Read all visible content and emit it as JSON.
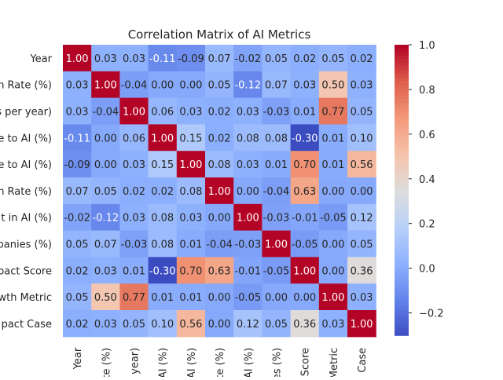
{
  "chart_data": {
    "type": "heatmap",
    "title": "Correlation Matrix of AI Metrics",
    "row_labels": [
      "Year",
      "n Rate (%)",
      "s per year)",
      "e to AI (%)",
      "e to AI (%)",
      "n Rate (%)",
      "t in AI (%)",
      "panies (%)",
      "pact Score",
      "wth Metric",
      "pact Case"
    ],
    "col_labels": [
      "Year",
      "te (%)",
      "year)",
      "AI (%)",
      "AI (%)",
      "te (%)",
      "AI (%)",
      "es (%)",
      "Score",
      "Metric",
      "Case"
    ],
    "values": [
      [
        1.0,
        0.03,
        0.03,
        -0.11,
        -0.09,
        0.07,
        -0.02,
        0.05,
        0.02,
        0.05,
        0.02
      ],
      [
        0.03,
        1.0,
        -0.04,
        -0.0,
        0.0,
        0.05,
        -0.12,
        0.07,
        0.03,
        0.5,
        0.03
      ],
      [
        0.03,
        -0.04,
        1.0,
        0.06,
        0.03,
        0.02,
        0.03,
        -0.03,
        0.01,
        0.77,
        0.05
      ],
      [
        -0.11,
        -0.0,
        0.06,
        1.0,
        0.15,
        0.02,
        0.08,
        0.08,
        -0.3,
        0.01,
        0.1
      ],
      [
        -0.09,
        0.0,
        0.03,
        0.15,
        1.0,
        0.08,
        0.03,
        0.01,
        0.7,
        0.01,
        0.56
      ],
      [
        0.07,
        0.05,
        0.02,
        0.02,
        0.08,
        1.0,
        0.0,
        -0.04,
        0.63,
        -0.0,
        0.0
      ],
      [
        -0.02,
        -0.12,
        0.03,
        0.08,
        0.03,
        0.0,
        1.0,
        -0.03,
        -0.01,
        -0.05,
        0.12
      ],
      [
        0.05,
        0.07,
        -0.03,
        0.08,
        0.01,
        -0.04,
        -0.03,
        1.0,
        -0.05,
        -0.0,
        0.05
      ],
      [
        0.02,
        0.03,
        0.01,
        -0.3,
        0.7,
        0.63,
        -0.01,
        -0.05,
        1.0,
        -0.0,
        0.36
      ],
      [
        0.05,
        0.5,
        0.77,
        0.01,
        0.01,
        -0.0,
        -0.05,
        -0.0,
        -0.0,
        1.0,
        0.03
      ],
      [
        0.02,
        0.03,
        0.05,
        0.1,
        0.56,
        0.0,
        0.12,
        0.05,
        0.36,
        0.03,
        1.0
      ]
    ],
    "value_format": "2 decimals",
    "colormap": "coolwarm",
    "vmin": -0.3,
    "vmax": 1.0,
    "colorbar_ticks": [
      -0.2,
      0.0,
      0.2,
      0.4,
      0.6,
      0.8,
      1.0
    ],
    "colorbar_tick_labels": [
      "−0.2",
      "0.0",
      "0.2",
      "0.4",
      "0.6",
      "0.8",
      "1.0"
    ],
    "grid": false,
    "legend": "colorbar-right"
  }
}
